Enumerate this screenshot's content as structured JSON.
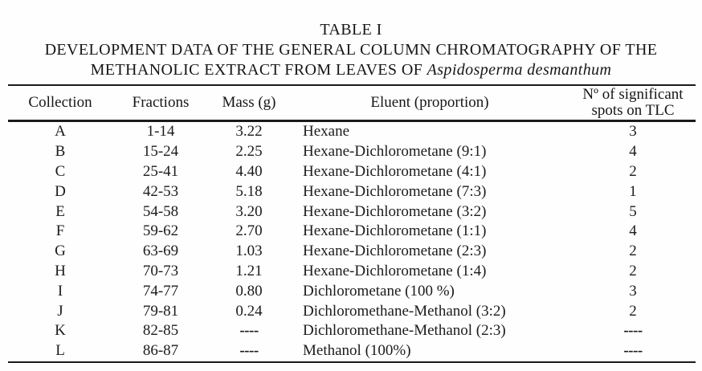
{
  "caption": {
    "table_number": "TABLE I",
    "line2": "DEVELOPMENT DATA OF THE GENERAL COLUMN CHROMATOGRAPHY OF THE",
    "line3_regular": "METHANOLIC EXTRACT FROM LEAVES OF ",
    "line3_italic": "Aspidosperma desmanthum"
  },
  "table": {
    "header": {
      "collection": "Collection",
      "fractions": "Fractions",
      "mass": "Mass (g)",
      "eluent": "Eluent (proportion)",
      "spots_line1": "Nº of significant",
      "spots_line2": "spots on TLC"
    },
    "rows": [
      {
        "collection": "A",
        "fractions": "1-14",
        "mass": "3.22",
        "eluent": "Hexane",
        "spots": "3"
      },
      {
        "collection": "B",
        "fractions": "15-24",
        "mass": "2.25",
        "eluent": "Hexane-Dichlorometane (9:1)",
        "spots": "4"
      },
      {
        "collection": "C",
        "fractions": "25-41",
        "mass": "4.40",
        "eluent": "Hexane-Dichlorometane (4:1)",
        "spots": "2"
      },
      {
        "collection": "D",
        "fractions": "42-53",
        "mass": "5.18",
        "eluent": "Hexane-Dichlorometane (7:3)",
        "spots": "1"
      },
      {
        "collection": "E",
        "fractions": "54-58",
        "mass": "3.20",
        "eluent": "Hexane-Dichlorometane (3:2)",
        "spots": "5"
      },
      {
        "collection": "F",
        "fractions": "59-62",
        "mass": "2.70",
        "eluent": "Hexane-Dichlorometane (1:1)",
        "spots": "4"
      },
      {
        "collection": "G",
        "fractions": "63-69",
        "mass": "1.03",
        "eluent": "Hexane-Dichlorometane (2:3)",
        "spots": "2"
      },
      {
        "collection": "H",
        "fractions": "70-73",
        "mass": "1.21",
        "eluent": "Hexane-Dichlorometane (1:4)",
        "spots": "2"
      },
      {
        "collection": "I",
        "fractions": "74-77",
        "mass": "0.80",
        "eluent": "Dichlorometane (100 %)",
        "spots": "3"
      },
      {
        "collection": "J",
        "fractions": "79-81",
        "mass": "0.24",
        "eluent": "Dichloromethane-Methanol (3:2)",
        "spots": "2"
      },
      {
        "collection": "K",
        "fractions": "82-85",
        "mass": "----",
        "eluent": "Dichloromethane-Methanol (2:3)",
        "spots": "----"
      },
      {
        "collection": "L",
        "fractions": "86-87",
        "mass": "----",
        "eluent": "Methanol (100%)",
        "spots": "----"
      }
    ]
  },
  "colors": {
    "background": "#fefefe",
    "text": "#1b1b1b",
    "rule": "#1b1b1b"
  }
}
